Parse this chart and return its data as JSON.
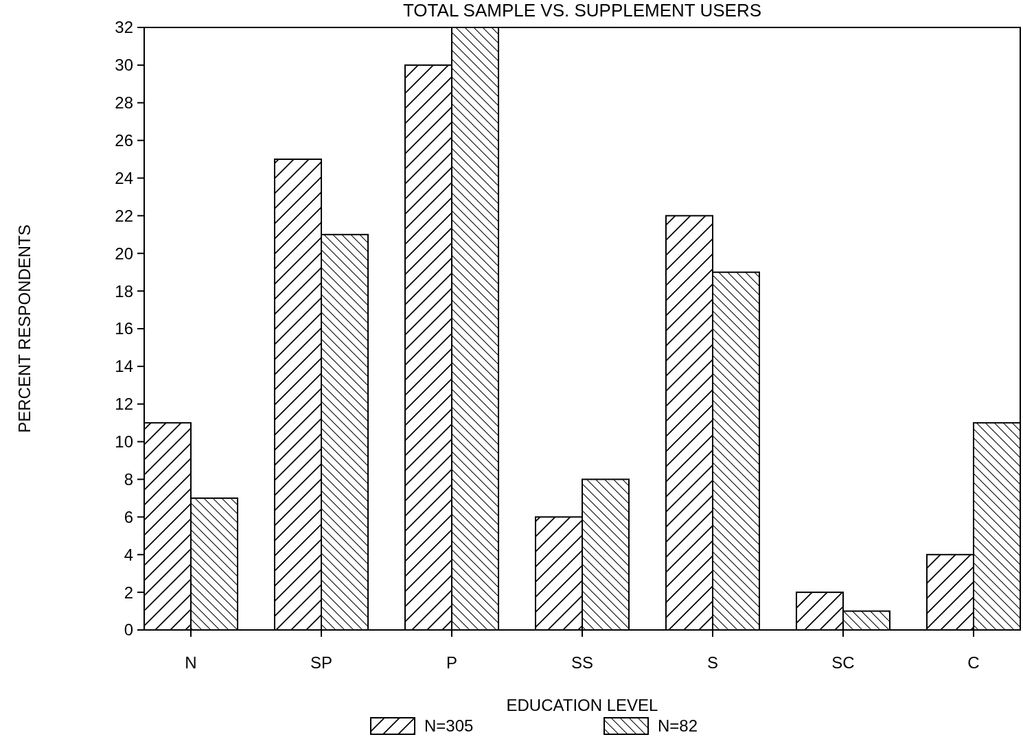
{
  "chart_data": {
    "type": "bar",
    "title": "TOTAL SAMPLE VS. SUPPLEMENT USERS",
    "xlabel": "EDUCATION LEVEL",
    "ylabel": "PERCENT RESPONDENTS",
    "categories": [
      "N",
      "SP",
      "P",
      "SS",
      "S",
      "SC",
      "C"
    ],
    "series": [
      {
        "name": "N=305",
        "color": "#000000",
        "values": [
          11,
          25,
          30,
          6,
          22,
          2,
          4
        ]
      },
      {
        "name": "N=82",
        "color": "#000000",
        "values": [
          7,
          21,
          32,
          8,
          19,
          1,
          11
        ]
      }
    ],
    "ylim": [
      0,
      32
    ],
    "yticks": [
      0,
      2,
      4,
      6,
      8,
      10,
      12,
      14,
      16,
      18,
      20,
      22,
      24,
      26,
      28,
      30,
      32
    ],
    "legend": "bottom",
    "grid": false
  }
}
